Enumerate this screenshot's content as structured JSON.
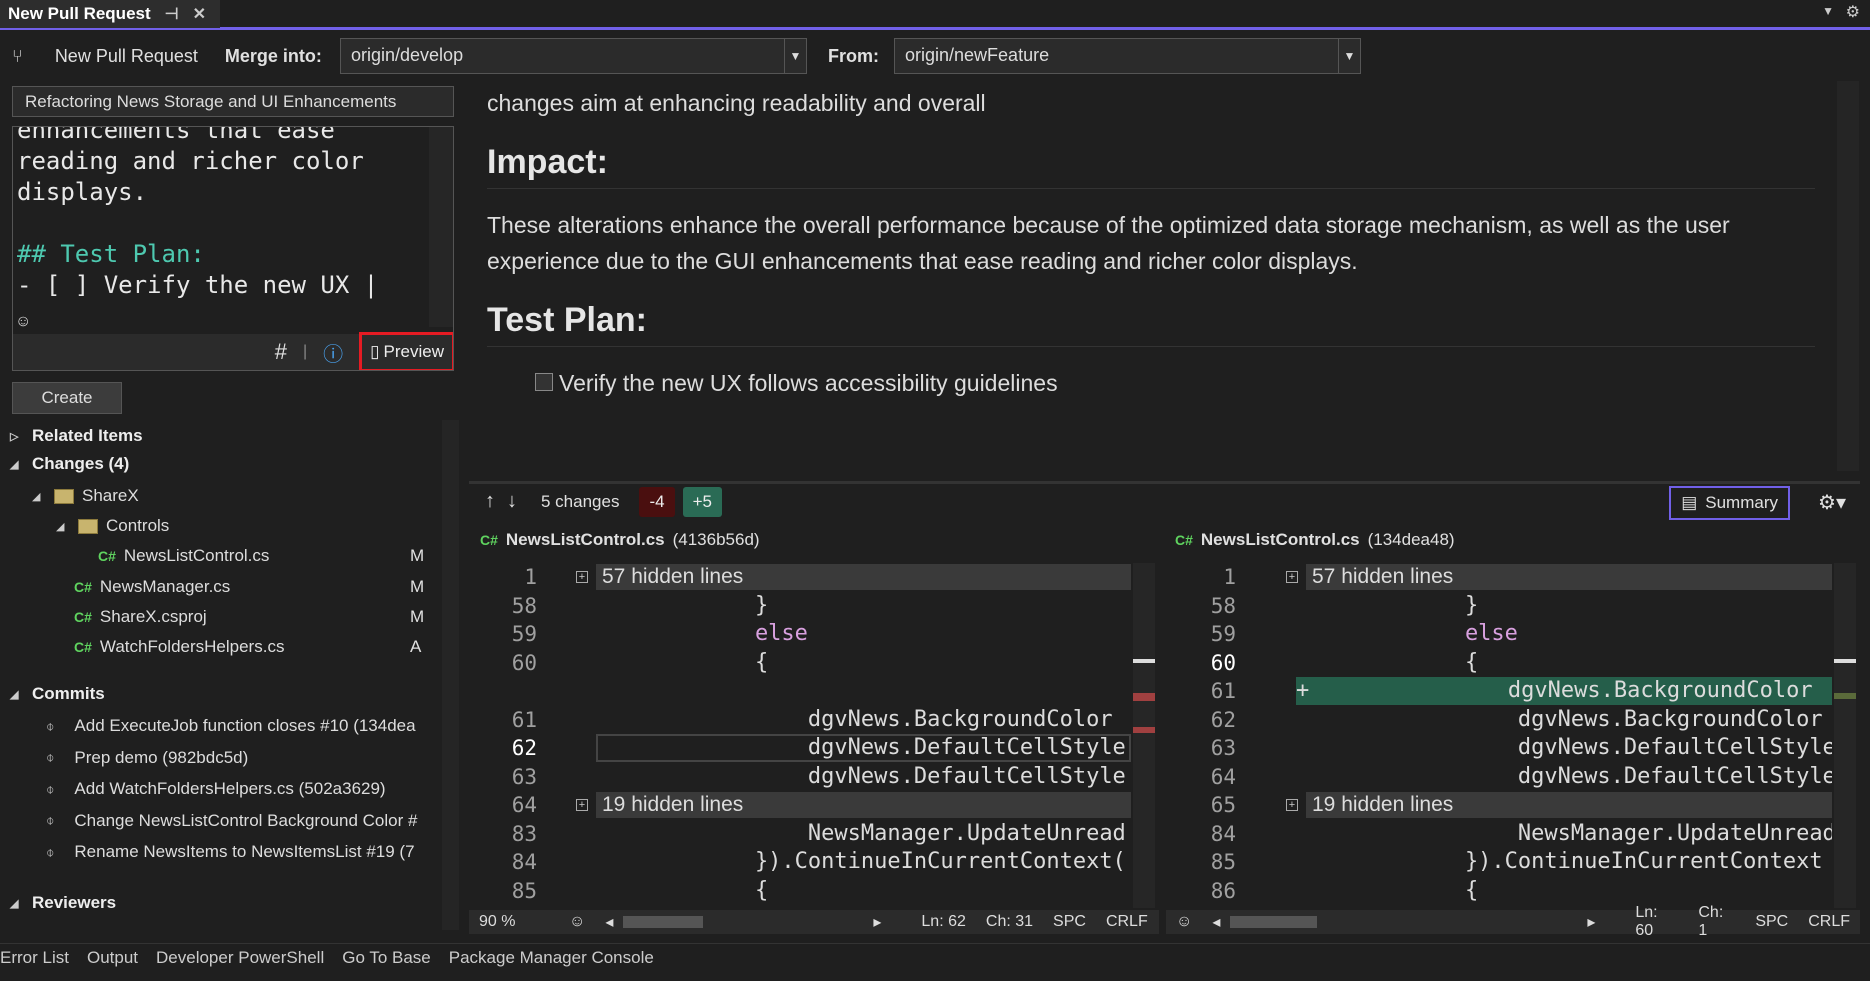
{
  "tab": {
    "title": "New Pull Request"
  },
  "toolbar": {
    "title": "New Pull Request",
    "merge_into_label": "Merge into:",
    "merge_into_value": "origin/develop",
    "from_label": "From:",
    "from_value": "origin/newFeature"
  },
  "form": {
    "title_value": "Refactoring News Storage and UI Enhancements",
    "description_lines": [
      "enhancements that ease",
      "reading and richer color",
      "displays.",
      "",
      "## Test Plan:",
      "- [ ] Verify the new UX |"
    ],
    "preview_label": "Preview",
    "create_label": "Create"
  },
  "tree": {
    "related_items": "Related Items",
    "changes": "Changes (4)",
    "folders": [
      "ShareX",
      "Controls"
    ],
    "files": [
      {
        "name": "NewsListControl.cs",
        "status": "M"
      },
      {
        "name": "NewsManager.cs",
        "status": "M"
      },
      {
        "name": "ShareX.csproj",
        "status": "M"
      },
      {
        "name": "WatchFoldersHelpers.cs",
        "status": "A"
      }
    ],
    "commits_label": "Commits",
    "commits": [
      "Add ExecuteJob function closes #10  (134dea",
      "Prep demo  (982bdc5d)",
      "Add WatchFoldersHelpers.cs  (502a3629)",
      "Change NewsListControl Background Color #",
      "Rename NewsItems to NewsItemsList #19  (7"
    ],
    "reviewers_label": "Reviewers"
  },
  "preview": {
    "intro": "changes aim at enhancing readability and overall",
    "impact_heading": "Impact:",
    "impact_text": "These alterations enhance the overall performance because of the optimized data storage mechanism, as well as the user experience due to the GUI enhancements that ease reading and richer color displays.",
    "test_plan_heading": "Test Plan:",
    "checklist_item": "Verify the new UX follows accessibility guidelines",
    "checklist_checked": false
  },
  "diff": {
    "changes": "5 changes",
    "removed": "-4",
    "added": "+5",
    "summary_label": "Summary",
    "left": {
      "file": "NewsListControl.cs",
      "hash": "(4136b56d)",
      "zoom": "90 %",
      "ln": "Ln: 62",
      "ch": "Ch: 31",
      "spc": "SPC",
      "eol": "CRLF",
      "lines": [
        [
          "1",
          "57 hidden lines"
        ],
        [
          "58",
          "            }"
        ],
        [
          "59",
          "            else"
        ],
        [
          "60",
          "            {"
        ],
        [
          "",
          ""
        ],
        [
          "61",
          "                dgvNews.BackgroundColor"
        ],
        [
          "62",
          "                dgvNews.DefaultCellStyle"
        ],
        [
          "63",
          "                dgvNews.DefaultCellStyle"
        ],
        [
          "64",
          "19 hidden lines"
        ],
        [
          "83",
          "                NewsManager.UpdateUnread"
        ],
        [
          "84",
          "            }).ContinueInCurrentContext("
        ],
        [
          "85",
          "            {"
        ]
      ]
    },
    "right": {
      "file": "NewsListControl.cs",
      "hash": "(134dea48)",
      "ln": "Ln: 60",
      "ch": "Ch: 1",
      "spc": "SPC",
      "eol": "CRLF",
      "lines": [
        [
          "1",
          "57 hidden lines"
        ],
        [
          "58",
          "            }"
        ],
        [
          "59",
          "            else"
        ],
        [
          "60",
          "            {"
        ],
        [
          "61",
          "                dgvNews.BackgroundColor"
        ],
        [
          "62",
          "                dgvNews.BackgroundColor"
        ],
        [
          "63",
          "                dgvNews.DefaultCellStyle"
        ],
        [
          "64",
          "                dgvNews.DefaultCellStyle"
        ],
        [
          "65",
          "19 hidden lines"
        ],
        [
          "84",
          "                NewsManager.UpdateUnread"
        ],
        [
          "85",
          "            }).ContinueInCurrentContext"
        ],
        [
          "86",
          "            {"
        ]
      ]
    }
  },
  "bottom_tabs": [
    "Error List",
    "Output",
    "Developer PowerShell",
    "Go To Base",
    "Package Manager Console"
  ],
  "colors": {
    "accent": "#7160e8",
    "highlight": "#e51b23",
    "added": "#255e4a",
    "removed": "#4a0f0f"
  }
}
